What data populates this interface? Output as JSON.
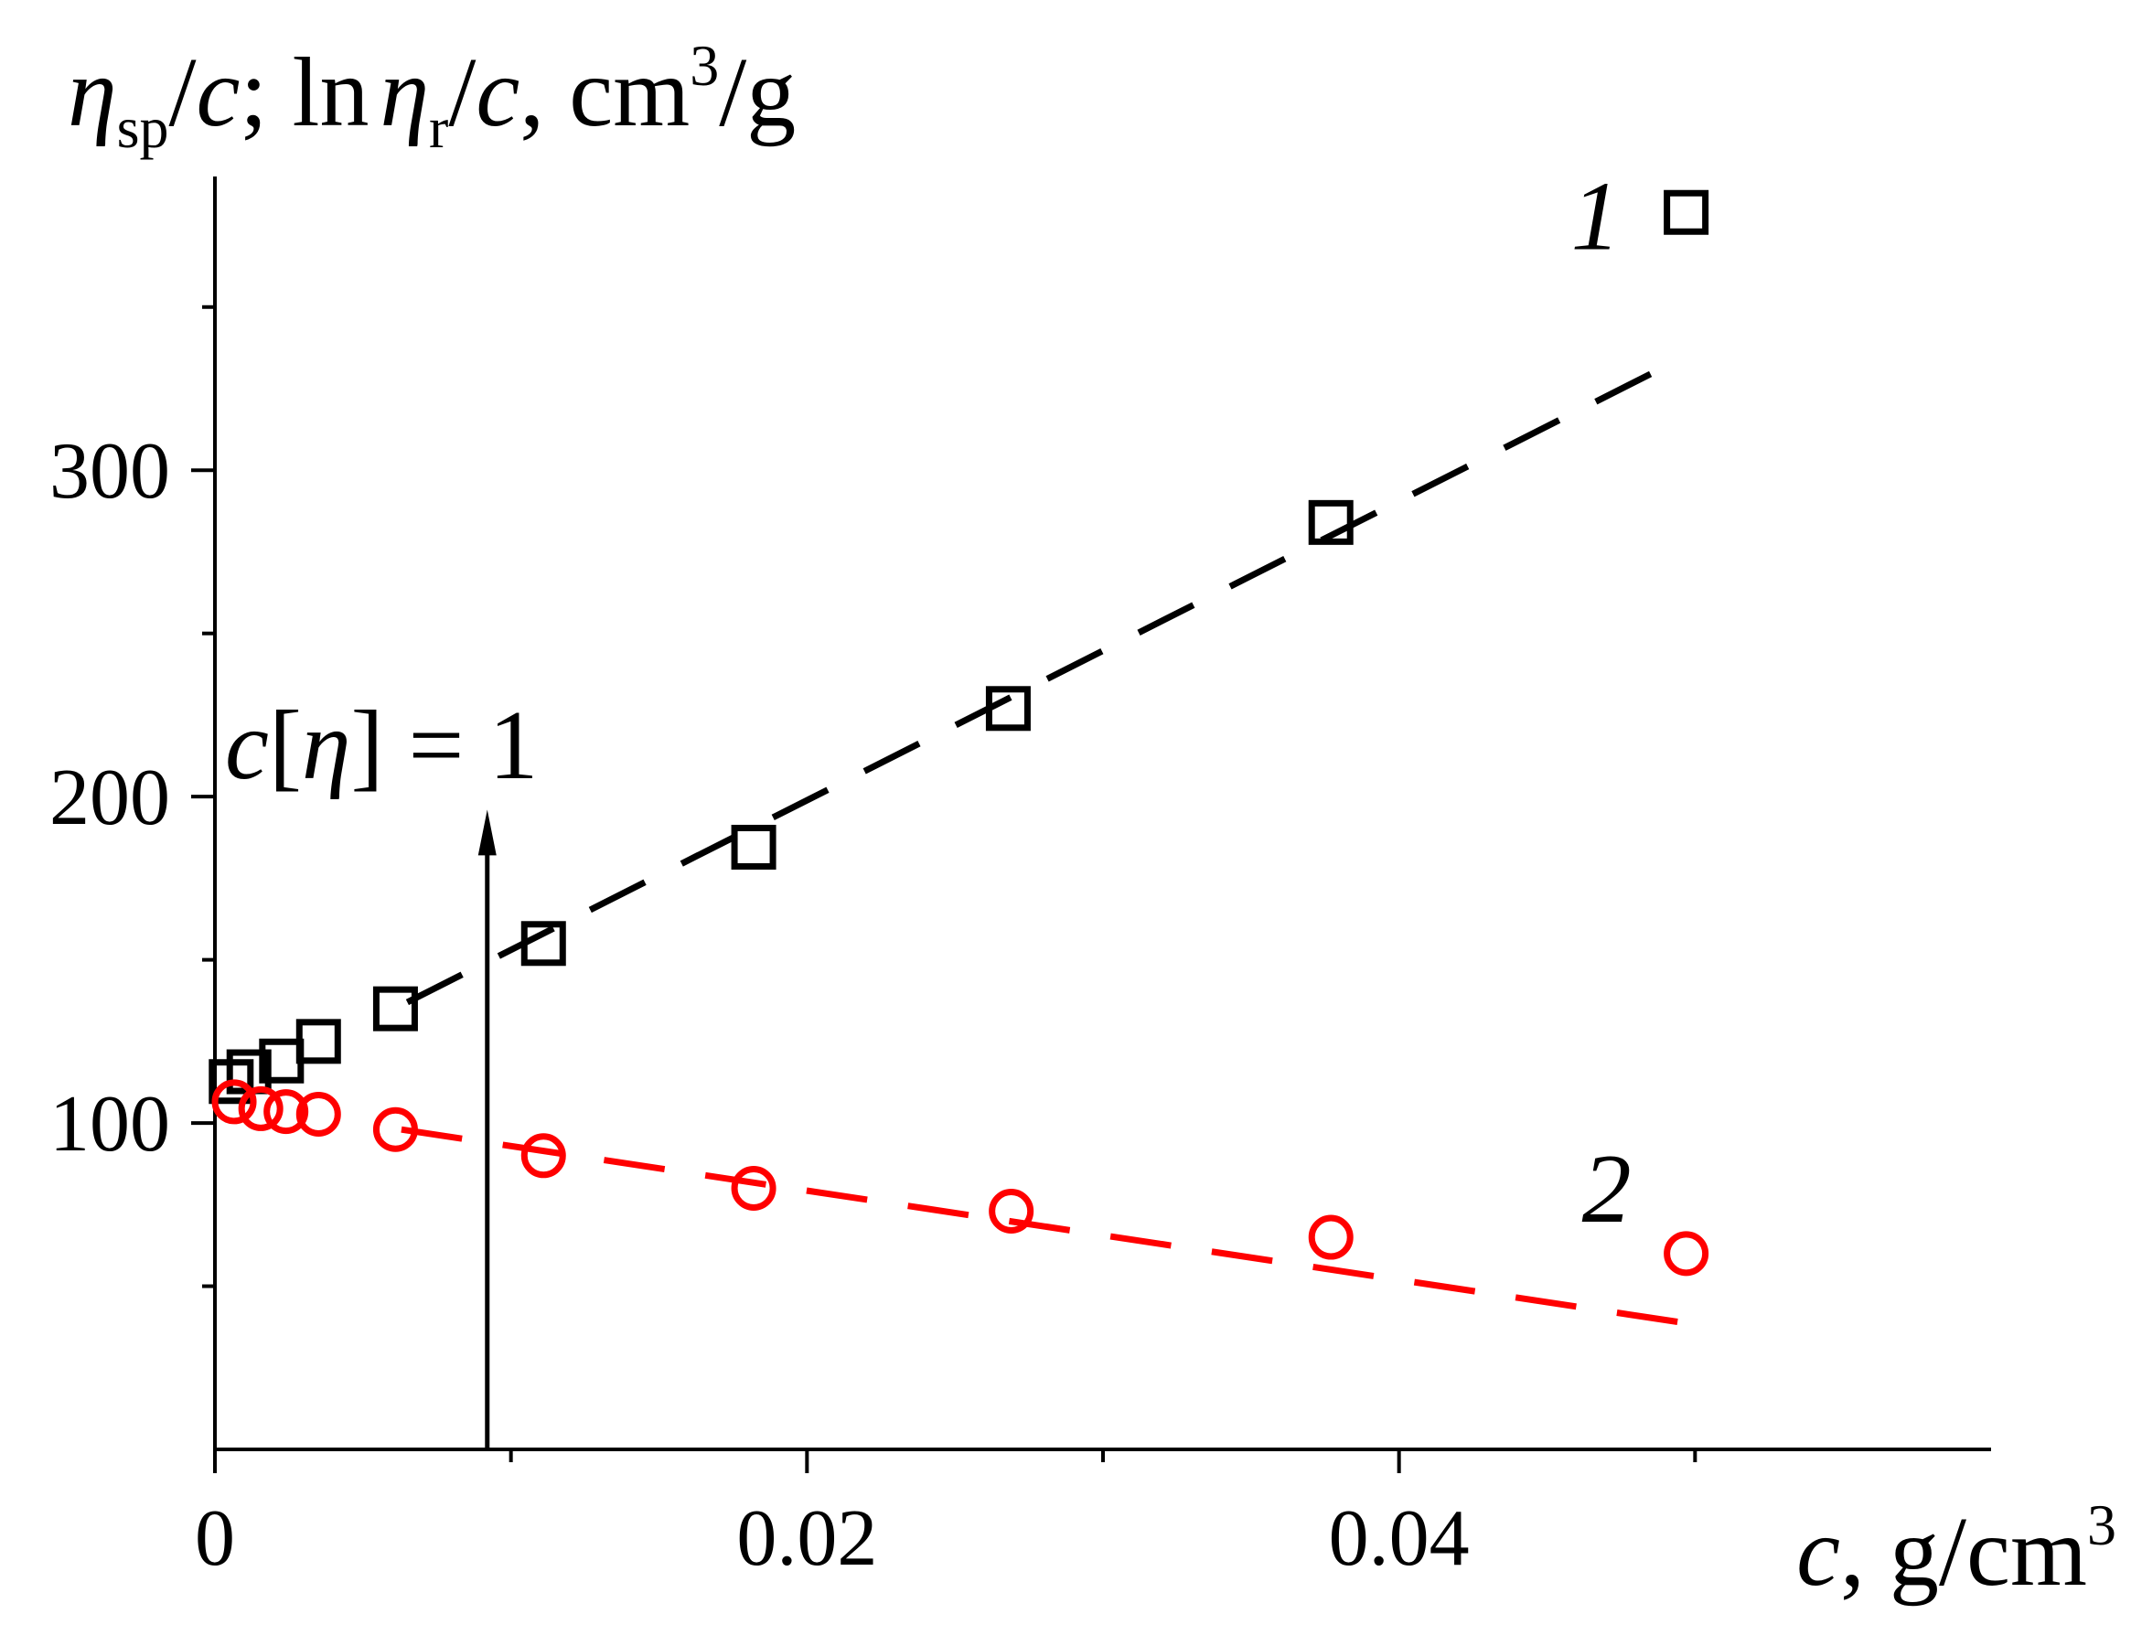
{
  "chart_data": {
    "type": "scatter",
    "y_label": [
      "η",
      "sp",
      "/",
      "c",
      "; ln",
      "η",
      "r",
      "/",
      "c",
      ", cm",
      "3",
      "/g"
    ],
    "x_label": [
      "c",
      ", g/cm",
      "3"
    ],
    "xlim": [
      0,
      0.06
    ],
    "ylim": [
      0,
      390
    ],
    "xticks": [
      0,
      0.02,
      0.04
    ],
    "yticks": [
      100,
      200,
      300
    ],
    "x_minor_ticks": [
      0.01,
      0.03,
      0.05
    ],
    "y_minor_ticks": [
      50,
      150,
      250,
      350
    ],
    "series": [
      {
        "name": "1",
        "color": "#000000",
        "marker": "square",
        "x": [
          0.00055,
          0.00115,
          0.00225,
          0.0035,
          0.0061,
          0.0111,
          0.0182,
          0.0268,
          0.0377,
          0.0497
        ],
        "values": [
          112.7,
          115.7,
          119,
          125,
          135,
          155,
          184.5,
          227,
          284,
          379
        ]
      },
      {
        "name": "2",
        "color": "#ff0000",
        "marker": "circle",
        "x": [
          0.00065,
          0.00155,
          0.0024,
          0.0035,
          0.0061,
          0.0111,
          0.0182,
          0.0269,
          0.0377,
          0.0497
        ],
        "values": [
          106.5,
          104.4,
          103.5,
          102.7,
          98,
          90,
          80,
          73,
          65,
          60
        ]
      }
    ],
    "fit_lines": [
      {
        "color": "#000000",
        "x": [
          0.0065,
          0.0497
        ],
        "values": [
          137,
          335
        ]
      },
      {
        "color": "#ff0000",
        "x": [
          0.0063,
          0.0502
        ],
        "values": [
          98,
          38
        ]
      }
    ],
    "arrow": {
      "x": 0.0092,
      "y": [
        0,
        196
      ],
      "label": [
        "c",
        "[",
        "η",
        "] = 1"
      ]
    }
  }
}
